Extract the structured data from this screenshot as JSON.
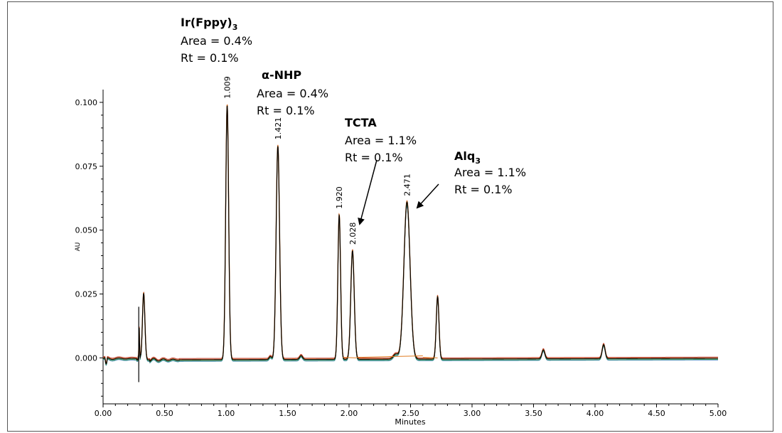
{
  "chart_data": {
    "type": "line",
    "xlabel": "Minutes",
    "ylabel": "AU",
    "xlim": [
      0,
      5
    ],
    "ylim": [
      -0.018,
      0.105
    ],
    "x_ticks": [
      "0.00",
      "0.50",
      "1.00",
      "1.50",
      "2.00",
      "2.50",
      "3.00",
      "3.50",
      "4.00",
      "4.50",
      "5.00"
    ],
    "y_ticks": [
      "0.000",
      "0.025",
      "0.050",
      "0.075",
      "0.100"
    ],
    "grid": false,
    "colors": {
      "trace_main": "#000000",
      "trace_orange": "#e07b1f",
      "trace_red": "#c0392b",
      "trace_blue": "#3d7fbf",
      "trace_green": "#3a9a5a"
    },
    "peaks": [
      {
        "rt": 0.295,
        "height": 0.02,
        "width": 0.004,
        "label": ""
      },
      {
        "rt": 0.33,
        "height": 0.026,
        "width": 0.01,
        "label": ""
      },
      {
        "rt": 1.009,
        "height": 0.0995,
        "width": 0.012,
        "label": "1.009"
      },
      {
        "rt": 1.36,
        "height": 0.0012,
        "width": 0.01,
        "label": ""
      },
      {
        "rt": 1.421,
        "height": 0.0835,
        "width": 0.014,
        "label": "1.421"
      },
      {
        "rt": 1.61,
        "height": 0.0015,
        "width": 0.012,
        "label": ""
      },
      {
        "rt": 1.92,
        "height": 0.0565,
        "width": 0.011,
        "label": "1.920"
      },
      {
        "rt": 2.028,
        "height": 0.0425,
        "width": 0.014,
        "label": "2.028"
      },
      {
        "rt": 2.38,
        "height": 0.002,
        "width": 0.02,
        "label": ""
      },
      {
        "rt": 2.471,
        "height": 0.0615,
        "width": 0.025,
        "label": "2.471"
      },
      {
        "rt": 2.72,
        "height": 0.0245,
        "width": 0.011,
        "label": ""
      },
      {
        "rt": 3.58,
        "height": 0.0035,
        "width": 0.012,
        "label": ""
      },
      {
        "rt": 4.07,
        "height": 0.0055,
        "width": 0.012,
        "label": ""
      }
    ],
    "annotations": [
      {
        "name": "Ir(Fppy)",
        "sub": "3",
        "area": "Area = 0.4%",
        "rt": "Rt = 0.1%"
      },
      {
        "name": "α-NHP",
        "sub": "",
        "area": "Area = 0.4%",
        "rt": "Rt = 0.1%"
      },
      {
        "name": "TCTA",
        "sub": "",
        "area": "Area = 1.1%",
        "rt": "Rt = 0.1%"
      },
      {
        "name": "Alq",
        "sub": "3",
        "area": "Area = 1.1%",
        "rt": "Rt = 0.1%"
      }
    ]
  }
}
